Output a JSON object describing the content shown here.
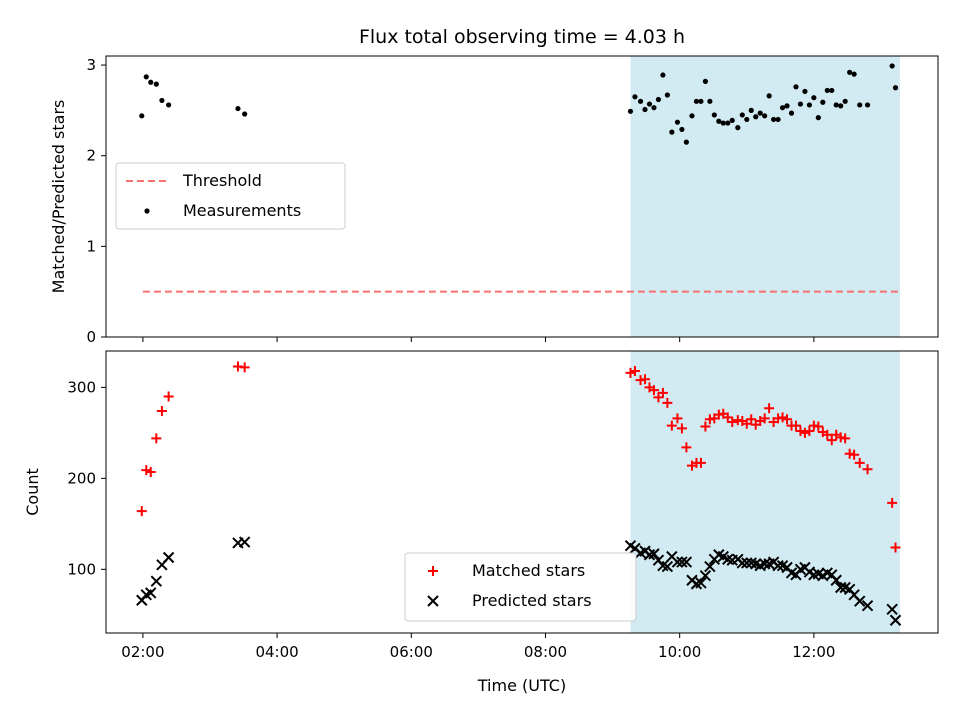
{
  "title": "Flux total observing time = 4.03 h",
  "xlabel": "Time (UTC)",
  "colors": {
    "threshold": "#f87171",
    "matched": "#ff0000",
    "predicted": "#000000",
    "measurement": "#000000",
    "shade": "#add8e6"
  },
  "chart_data": [
    {
      "type": "scatter",
      "ylabel": "Matched/Predicted stars",
      "ylim": [
        0,
        3.1
      ],
      "yticks": [
        0,
        1,
        2,
        3
      ],
      "xlim": [
        "01:27",
        "13:51"
      ],
      "xticks": [
        "02:00",
        "04:00",
        "06:00",
        "08:00",
        "10:00",
        "12:00"
      ],
      "shaded_region": [
        "09:16",
        "13:17"
      ],
      "threshold": {
        "label": "Threshold",
        "y": 0.5,
        "x_range": [
          "02:00",
          "13:17"
        ]
      },
      "legend": {
        "placement": "center-left",
        "entries": [
          "Threshold",
          "Measurements"
        ]
      },
      "series": [
        {
          "name": "Measurements",
          "points": [
            [
              "01:59",
              2.44
            ],
            [
              "02:03",
              2.87
            ],
            [
              "02:07",
              2.81
            ],
            [
              "02:12",
              2.79
            ],
            [
              "02:17",
              2.61
            ],
            [
              "02:23",
              2.56
            ],
            [
              "03:25",
              2.52
            ],
            [
              "03:31",
              2.46
            ],
            [
              "09:16",
              2.49
            ],
            [
              "09:20",
              2.65
            ],
            [
              "09:25",
              2.6
            ],
            [
              "09:29",
              2.51
            ],
            [
              "09:33",
              2.57
            ],
            [
              "09:37",
              2.53
            ],
            [
              "09:41",
              2.62
            ],
            [
              "09:45",
              2.89
            ],
            [
              "09:49",
              2.67
            ],
            [
              "09:53",
              2.26
            ],
            [
              "09:58",
              2.37
            ],
            [
              "10:02",
              2.29
            ],
            [
              "10:06",
              2.15
            ],
            [
              "10:11",
              2.44
            ],
            [
              "10:15",
              2.6
            ],
            [
              "10:19",
              2.6
            ],
            [
              "10:23",
              2.82
            ],
            [
              "10:27",
              2.6
            ],
            [
              "10:31",
              2.45
            ],
            [
              "10:35",
              2.38
            ],
            [
              "10:39",
              2.36
            ],
            [
              "10:43",
              2.36
            ],
            [
              "10:47",
              2.39
            ],
            [
              "10:52",
              2.31
            ],
            [
              "10:56",
              2.45
            ],
            [
              "11:00",
              2.4
            ],
            [
              "11:04",
              2.5
            ],
            [
              "11:08",
              2.43
            ],
            [
              "11:12",
              2.47
            ],
            [
              "11:16",
              2.44
            ],
            [
              "11:20",
              2.66
            ],
            [
              "11:24",
              2.4
            ],
            [
              "11:28",
              2.4
            ],
            [
              "11:32",
              2.53
            ],
            [
              "11:36",
              2.55
            ],
            [
              "11:40",
              2.47
            ],
            [
              "11:44",
              2.76
            ],
            [
              "11:48",
              2.57
            ],
            [
              "11:52",
              2.71
            ],
            [
              "11:56",
              2.56
            ],
            [
              "12:00",
              2.64
            ],
            [
              "12:04",
              2.42
            ],
            [
              "12:08",
              2.59
            ],
            [
              "12:12",
              2.72
            ],
            [
              "12:16",
              2.72
            ],
            [
              "12:20",
              2.56
            ],
            [
              "12:24",
              2.55
            ],
            [
              "12:28",
              2.6
            ],
            [
              "12:32",
              2.92
            ],
            [
              "12:36",
              2.9
            ],
            [
              "12:41",
              2.56
            ],
            [
              "12:48",
              2.56
            ],
            [
              "13:10",
              2.99
            ],
            [
              "13:13",
              2.75
            ]
          ]
        }
      ]
    },
    {
      "type": "scatter",
      "ylabel": "Count",
      "ylim": [
        30,
        340
      ],
      "yticks": [
        100,
        200,
        300
      ],
      "xlim": [
        "01:27",
        "13:51"
      ],
      "xticks": [
        "02:00",
        "04:00",
        "06:00",
        "08:00",
        "10:00",
        "12:00"
      ],
      "shaded_region": [
        "09:16",
        "13:17"
      ],
      "legend": {
        "placement": "lower-center",
        "entries": [
          "Matched stars",
          "Predicted stars"
        ]
      },
      "series": [
        {
          "name": "Matched stars",
          "points": [
            [
              "01:59",
              164
            ],
            [
              "02:03",
              209
            ],
            [
              "02:07",
              207
            ],
            [
              "02:12",
              244
            ],
            [
              "02:17",
              274
            ],
            [
              "02:23",
              290
            ],
            [
              "03:25",
              323
            ],
            [
              "03:31",
              322
            ],
            [
              "09:16",
              316
            ],
            [
              "09:20",
              318
            ],
            [
              "09:25",
              308
            ],
            [
              "09:29",
              309
            ],
            [
              "09:33",
              300
            ],
            [
              "09:37",
              297
            ],
            [
              "09:41",
              289
            ],
            [
              "09:45",
              294
            ],
            [
              "09:49",
              283
            ],
            [
              "09:53",
              258
            ],
            [
              "09:58",
              266
            ],
            [
              "10:02",
              255
            ],
            [
              "10:06",
              234
            ],
            [
              "10:11",
              214
            ],
            [
              "10:15",
              217
            ],
            [
              "10:19",
              217
            ],
            [
              "10:23",
              257
            ],
            [
              "10:27",
              265
            ],
            [
              "10:31",
              266
            ],
            [
              "10:35",
              270
            ],
            [
              "10:39",
              271
            ],
            [
              "10:43",
              267
            ],
            [
              "10:47",
              262
            ],
            [
              "10:52",
              264
            ],
            [
              "10:56",
              263
            ],
            [
              "11:00",
              260
            ],
            [
              "11:04",
              265
            ],
            [
              "11:08",
              259
            ],
            [
              "11:12",
              263
            ],
            [
              "11:16",
              266
            ],
            [
              "11:20",
              277
            ],
            [
              "11:24",
              262
            ],
            [
              "11:28",
              266
            ],
            [
              "11:32",
              267
            ],
            [
              "11:36",
              265
            ],
            [
              "11:40",
              258
            ],
            [
              "11:44",
              258
            ],
            [
              "11:48",
              252
            ],
            [
              "11:52",
              250
            ],
            [
              "11:56",
              252
            ],
            [
              "12:00",
              258
            ],
            [
              "12:04",
              257
            ],
            [
              "12:08",
              251
            ],
            [
              "12:12",
              248
            ],
            [
              "12:16",
              242
            ],
            [
              "12:20",
              248
            ],
            [
              "12:24",
              245
            ],
            [
              "12:28",
              244
            ],
            [
              "12:32",
              227
            ],
            [
              "12:36",
              226
            ],
            [
              "12:41",
              217
            ],
            [
              "12:48",
              210
            ],
            [
              "13:10",
              173
            ],
            [
              "13:13",
              124
            ]
          ]
        },
        {
          "name": "Predicted stars",
          "points": [
            [
              "01:59",
              66
            ],
            [
              "02:03",
              72
            ],
            [
              "02:07",
              74
            ],
            [
              "02:12",
              87
            ],
            [
              "02:17",
              105
            ],
            [
              "02:23",
              113
            ],
            [
              "03:25",
              129
            ],
            [
              "03:31",
              130
            ],
            [
              "09:16",
              126
            ],
            [
              "09:20",
              123
            ],
            [
              "09:25",
              118
            ],
            [
              "09:29",
              120
            ],
            [
              "09:33",
              116
            ],
            [
              "09:37",
              117
            ],
            [
              "09:41",
              110
            ],
            [
              "09:45",
              104
            ],
            [
              "09:49",
              103
            ],
            [
              "09:53",
              114
            ],
            [
              "09:58",
              108
            ],
            [
              "10:02",
              108
            ],
            [
              "10:06",
              108
            ],
            [
              "10:11",
              88
            ],
            [
              "10:15",
              84
            ],
            [
              "10:19",
              85
            ],
            [
              "10:23",
              93
            ],
            [
              "10:27",
              103
            ],
            [
              "10:31",
              111
            ],
            [
              "10:35",
              116
            ],
            [
              "10:39",
              114
            ],
            [
              "10:43",
              111
            ],
            [
              "10:47",
              110
            ],
            [
              "10:52",
              111
            ],
            [
              "10:56",
              107
            ],
            [
              "11:00",
              107
            ],
            [
              "11:04",
              107
            ],
            [
              "11:08",
              106
            ],
            [
              "11:12",
              104
            ],
            [
              "11:16",
              106
            ],
            [
              "11:20",
              106
            ],
            [
              "11:24",
              108
            ],
            [
              "11:28",
              104
            ],
            [
              "11:32",
              104
            ],
            [
              "11:36",
              102
            ],
            [
              "11:40",
              96
            ],
            [
              "11:44",
              94
            ],
            [
              "11:48",
              100
            ],
            [
              "11:52",
              102
            ],
            [
              "11:56",
              97
            ],
            [
              "12:00",
              94
            ],
            [
              "12:04",
              95
            ],
            [
              "12:08",
              93
            ],
            [
              "12:12",
              96
            ],
            [
              "12:16",
              94
            ],
            [
              "12:20",
              88
            ],
            [
              "12:24",
              80
            ],
            [
              "12:28",
              80
            ],
            [
              "12:32",
              78
            ],
            [
              "12:36",
              72
            ],
            [
              "12:41",
              65
            ],
            [
              "12:48",
              60
            ],
            [
              "13:10",
              56
            ],
            [
              "13:13",
              44
            ]
          ]
        }
      ]
    }
  ]
}
